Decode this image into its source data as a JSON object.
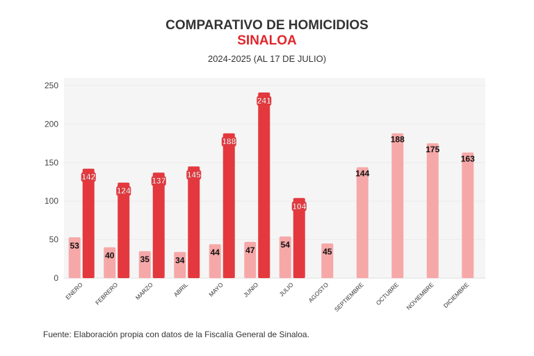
{
  "chart_data": {
    "type": "bar",
    "title": "COMPARATIVO DE HOMICIDIOS",
    "subtitle": "SINALOA",
    "period": "2024-2025 (AL 17 DE JULIO)",
    "source": "Fuente: Elaboración propia con datos de la Fiscalía General de Sinaloa.",
    "categories": [
      "ENERO",
      "FEBRERO",
      "MARZO",
      "ABRIL",
      "MAYO",
      "JUNIO",
      "JULIO",
      "AGOSTO",
      "SEPTIEMBRE",
      "OCTUBRE",
      "NOVIEMBRE",
      "DICIEMBRE"
    ],
    "series": [
      {
        "values": [
          53,
          40,
          35,
          34,
          44,
          47,
          54,
          45,
          144,
          188,
          175,
          163
        ],
        "color": "#f6a8a8"
      },
      {
        "values": [
          142,
          124,
          137,
          145,
          188,
          241,
          104,
          null,
          null,
          null,
          null,
          null
        ],
        "color": "#e3393e"
      }
    ],
    "ylim": [
      0,
      250
    ],
    "yticks": [
      0,
      50,
      100,
      150,
      200,
      250
    ],
    "grid": true,
    "legend": "none"
  }
}
